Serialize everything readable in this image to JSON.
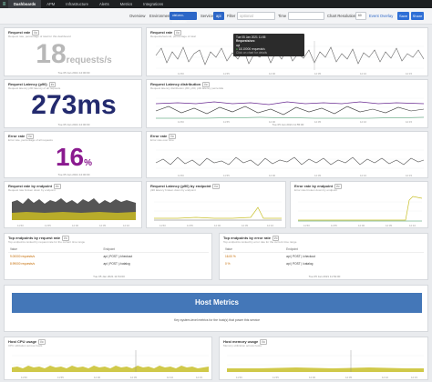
{
  "nav": {
    "tabs": [
      "Dashboards",
      "APM",
      "Infrastructure",
      "Alerts",
      "Metrics",
      "Integrations"
    ],
    "active": "Dashboards"
  },
  "toolbar": {
    "overview_label": "Overview",
    "environment_label": "Environment",
    "environment_value": "otel-env-production",
    "service_label": "Service",
    "service_value": "api",
    "filter_label": "Filter",
    "filter_placeholder": "optional",
    "time_label": "Time",
    "time_value": "",
    "resolution_label": "Chart Resolution",
    "resolution_value": "60",
    "event_overlay": "Event Overlay",
    "save_label": "Save",
    "share_label": "Share"
  },
  "panels": {
    "request_rate": {
      "title": "Request rate",
      "badge": "i/o",
      "subtitle": "Request rate, percentage of total for this dashboard",
      "value": "18",
      "unit": "requests/s",
      "time": "Tue 05 Jan 2021 12:00:00"
    },
    "request_rate_chart": {
      "title": "Request rate",
      "badge": "i/o",
      "subtitle": "Requests/second, percentage of total"
    },
    "latency": {
      "title": "Request Latency (p90)",
      "badge": "i/o",
      "subtitle": "Request latency p90 latency of all requests",
      "value": "273ms",
      "time": "Tue 05 Jan 2021 12:00:00"
    },
    "latency_dist": {
      "title": "Request Latency distribution",
      "badge": "i/o",
      "subtitle": "Request latency distribution p50, p90, p99 latency percentile",
      "time": "Tue 05 Jan 2021 11:55:00"
    },
    "error_rate": {
      "title": "Error rate",
      "badge": "i/o",
      "subtitle": "Error rate, percentage of all requests",
      "value": "16",
      "unit": "%",
      "time": "Tue 05 Jan 2021 12:00:00"
    },
    "error_rate_chart": {
      "title": "Error rate",
      "badge": "i/o",
      "subtitle": "Error rate over time"
    },
    "req_by_endpoint": {
      "title": "Request rate by endpoint",
      "badge": "i/o",
      "subtitle": "Request rate broken down by endpoint"
    },
    "latency_by_endpoint": {
      "title": "Request Latency (p90) by endpoint",
      "badge": "i/o",
      "subtitle": "p90 latency broken down by endpoint"
    },
    "error_by_endpoint": {
      "title": "Error rate by endpoint",
      "badge": "i/o",
      "subtitle": "Error rate broken down by endpoint"
    },
    "top_by_rate": {
      "title": "Top endpoints by request rate",
      "badge": "i/o",
      "subtitle": "Top endpoints ranked by request rate for the current time range",
      "columns": [
        "Value",
        "Endpoint"
      ],
      "rows": [
        {
          "value": "9.00000 requests/s",
          "endpoint": "api | POST | /checkout"
        },
        {
          "value": "8.99000 requests/s",
          "endpoint": "api | POST | /catalog"
        }
      ],
      "time": "Tue 05 Jan 2021 11:54:00"
    },
    "top_by_error": {
      "title": "Top endpoints by error rate",
      "badge": "i/o",
      "subtitle": "Top endpoints ranked by error rate for the current time range",
      "columns": [
        "Value",
        "Endpoint"
      ],
      "rows": [
        {
          "value": "16.00 %",
          "endpoint": "api | POST | /checkout"
        },
        {
          "value": "0 %",
          "endpoint": "api | POST | /catalog"
        }
      ],
      "time": "Tue 05 Jan 2021 11:54:00"
    },
    "host_metrics": {
      "title": "Host Metrics",
      "subtitle": "Key system-level metrics for the host(s) that power this service"
    },
    "host_cpu": {
      "title": "Host CPU usage",
      "badge": "i/o",
      "subtitle": "CPU utilization across hosts"
    },
    "host_mem": {
      "title": "Host memory usage",
      "badge": "i/o",
      "subtitle": "Memory utilization across hosts"
    }
  },
  "tooltip": {
    "time": "Tue 05 Jan 2021 11:55",
    "heading": "Requests/sec",
    "metric": "api",
    "value": "18.10000 requests/s",
    "note": "Click on chart for details"
  },
  "time_ticks": [
    "11:50",
    "11:55",
    "12:00",
    "12:05",
    "12:10",
    "12:15"
  ],
  "colors": {
    "request_value": "#b8b8b8",
    "latency_value": "#232a6e",
    "error_value": "#8a1a8f",
    "banner": "#4477b8",
    "series_gray": "#666666",
    "series_purple": "#6a2c92",
    "series_yellow": "#c8c02a",
    "series_green": "#2e8b57"
  }
}
